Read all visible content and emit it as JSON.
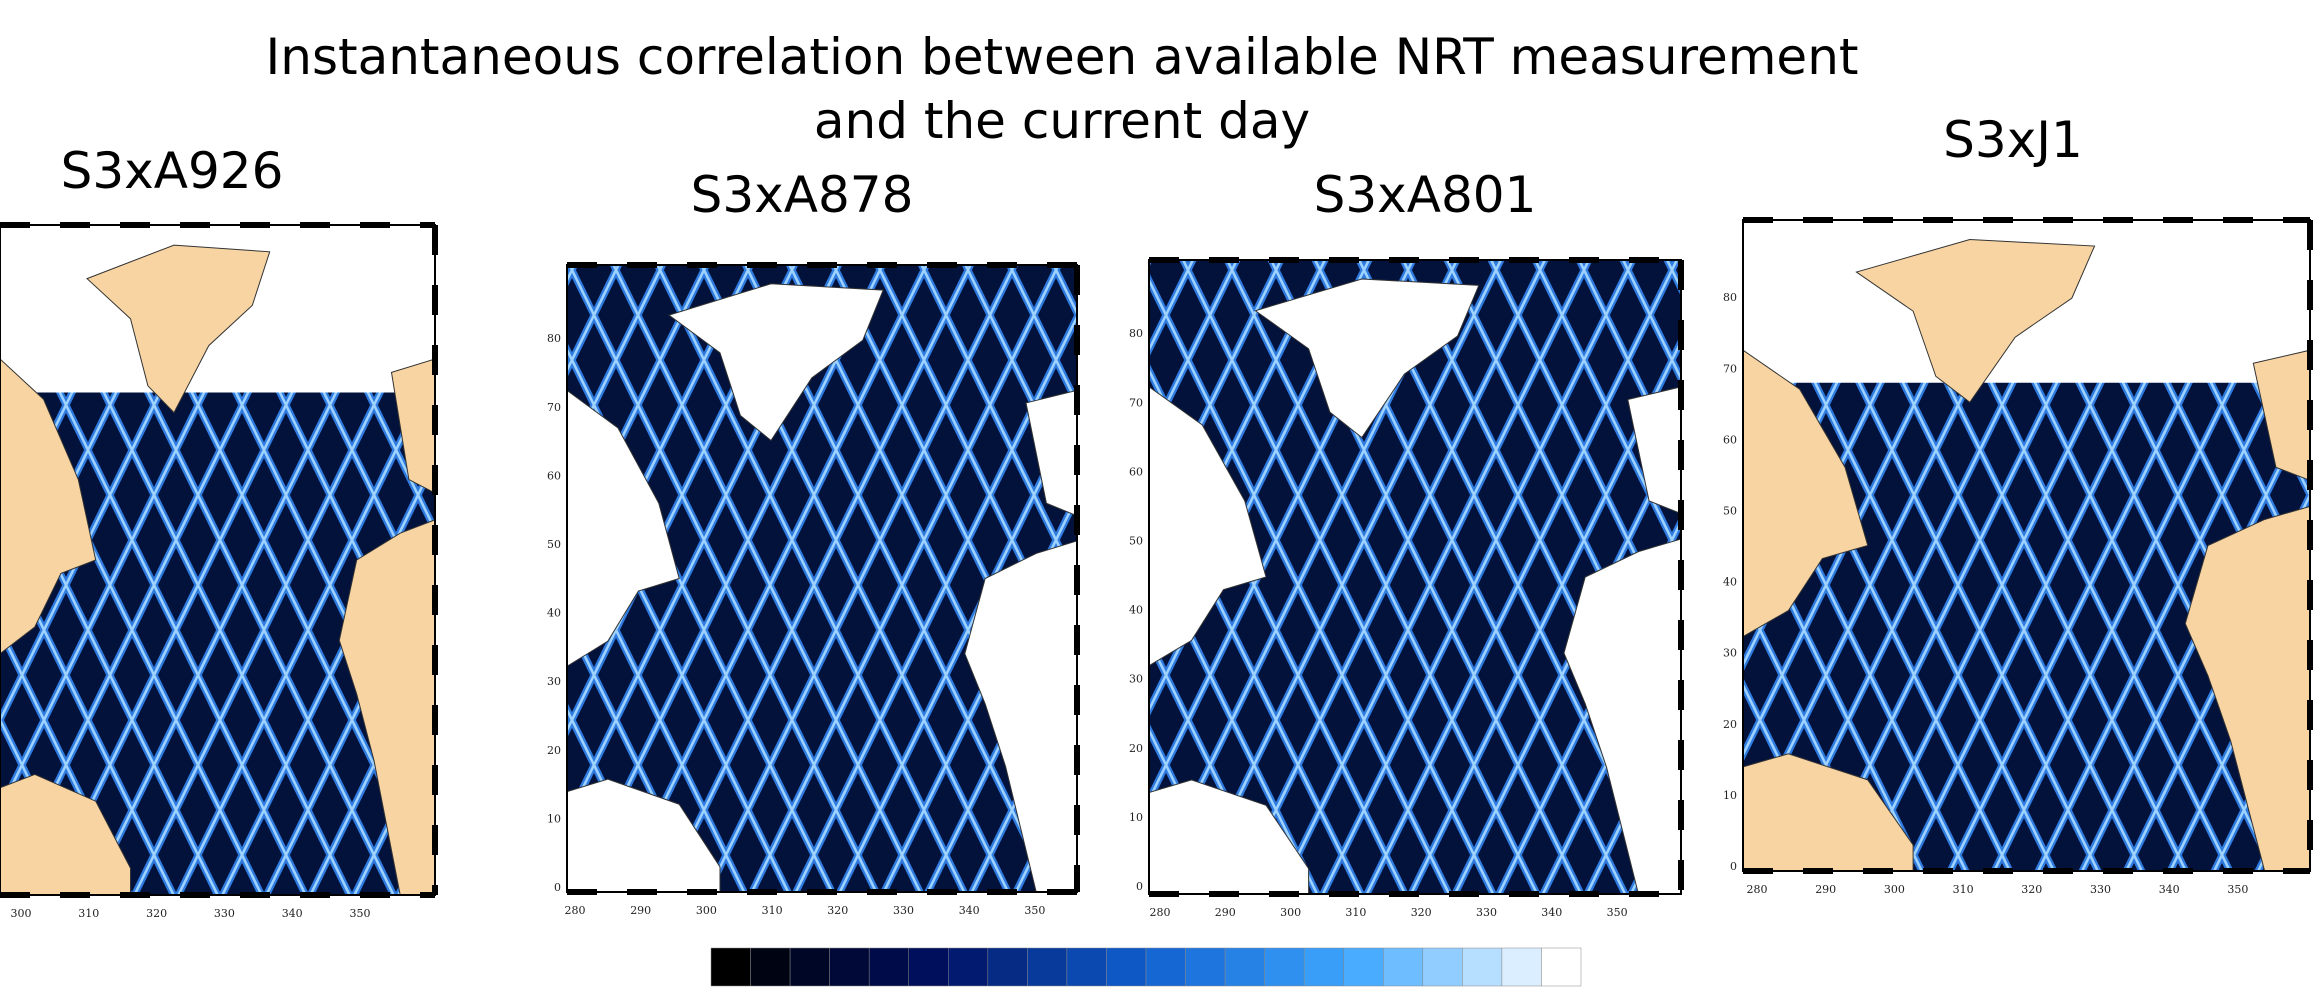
{
  "header": {
    "title_lines": [
      "Instantaneous correlation between available NRT measurement",
      "and the current day"
    ]
  },
  "panels": [
    {
      "title": "S3xA926",
      "x_ticks": [
        300,
        310,
        320,
        330,
        340,
        350
      ]
    },
    {
      "title": "S3xA878",
      "x_ticks": [
        280,
        290,
        300,
        310,
        320,
        330,
        340,
        350
      ],
      "y_ticks": [
        0,
        10,
        20,
        30,
        40,
        50,
        60,
        70,
        80
      ]
    },
    {
      "title": "S3xA801",
      "x_ticks": [
        280,
        290,
        300,
        310,
        320,
        330,
        340,
        350
      ],
      "y_ticks": [
        0,
        10,
        20,
        30,
        40,
        50,
        60,
        70,
        80
      ]
    },
    {
      "title": "S3xJ1",
      "x_ticks": [
        280,
        290,
        300,
        310,
        320,
        330,
        340,
        350
      ],
      "y_ticks": [
        0,
        10,
        20,
        30,
        40,
        50,
        60,
        70,
        80
      ]
    }
  ]
}
